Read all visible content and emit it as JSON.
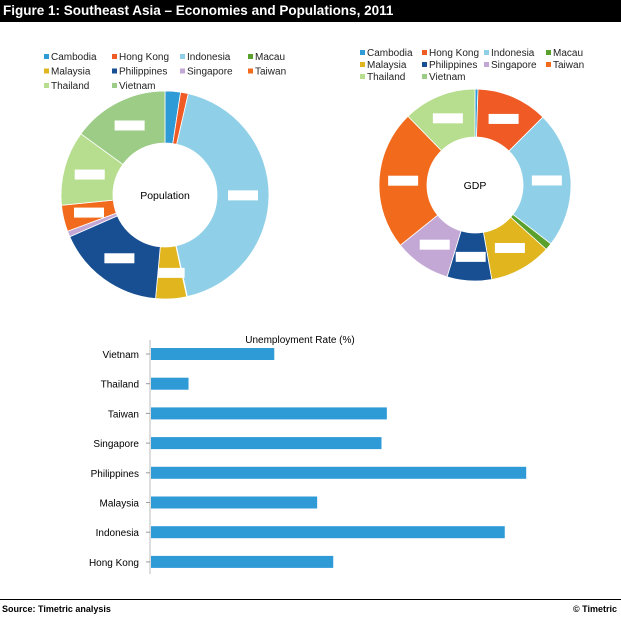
{
  "header": {
    "title": "Figure 1: Southeast Asia – Economies and Populations, 2011"
  },
  "footer": {
    "source": "Source: Timetric analysis",
    "copyright": "© Timetric"
  },
  "chart_data": [
    {
      "type": "pie",
      "variant": "donut",
      "center_label": "Population",
      "legend_position": "top",
      "categories": [
        "Cambodia",
        "Hong Kong",
        "Indonesia",
        "Macau",
        "Malaysia",
        "Philippines",
        "Singapore",
        "Taiwan",
        "Thailand",
        "Vietnam"
      ],
      "values": [
        2.4,
        1.2,
        43.0,
        0.1,
        4.8,
        17.0,
        0.9,
        4.1,
        11.6,
        15.0
      ],
      "colors": [
        "#2e9ad6",
        "#f05a24",
        "#8fd0e8",
        "#5aa02c",
        "#e0b51e",
        "#174f92",
        "#c3a8d6",
        "#f26b1d",
        "#b7de8f",
        "#9ccc86"
      ]
    },
    {
      "type": "pie",
      "variant": "donut",
      "center_label": "GDP",
      "legend_position": "top",
      "categories": [
        "Cambodia",
        "Hong Kong",
        "Indonesia",
        "Macau",
        "Malaysia",
        "Philippines",
        "Singapore",
        "Taiwan",
        "Thailand",
        "Vietnam"
      ],
      "values": [
        0.5,
        12.0,
        23.0,
        1.2,
        10.5,
        7.5,
        9.5,
        23.5,
        12.3,
        0.0
      ],
      "colors": [
        "#2e9ad6",
        "#f05a24",
        "#8fd0e8",
        "#5aa02c",
        "#e0b51e",
        "#174f92",
        "#c3a8d6",
        "#f26b1d",
        "#b7de8f",
        "#9ccc86"
      ]
    },
    {
      "type": "bar",
      "orientation": "horizontal",
      "title": "Unemployment Rate (%)",
      "categories": [
        "Vietnam",
        "Thailand",
        "Taiwan",
        "Singapore",
        "Philippines",
        "Malaysia",
        "Indonesia",
        "Hong Kong"
      ],
      "values": [
        2.3,
        0.7,
        4.4,
        4.3,
        7.0,
        3.1,
        6.6,
        3.4
      ],
      "xlim": [
        0,
        8
      ],
      "color": "#2e9ad6"
    }
  ]
}
